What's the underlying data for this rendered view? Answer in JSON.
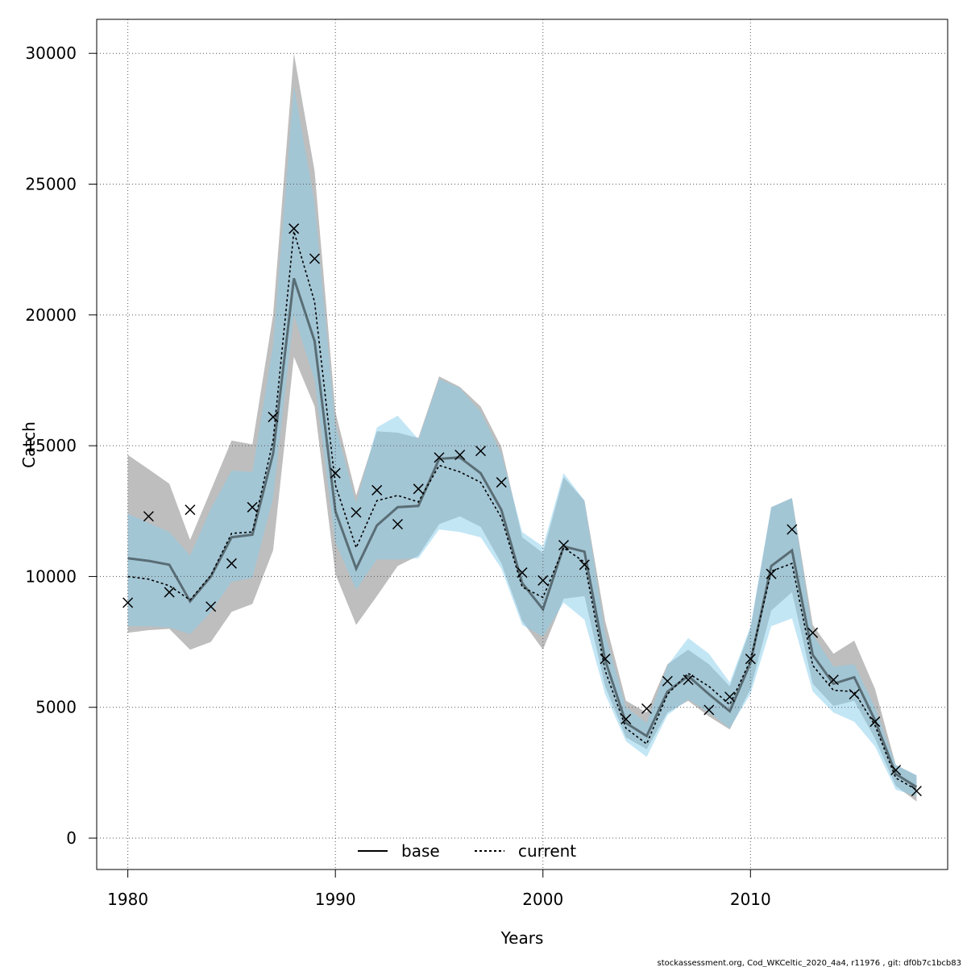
{
  "chart_data": {
    "type": "line",
    "xlabel": "Years",
    "ylabel": "Catch",
    "xlim": [
      1978.5,
      2019.5
    ],
    "ylim": [
      -1200,
      31300
    ],
    "x_ticks": [
      1980,
      1990,
      2000,
      2010
    ],
    "y_ticks": [
      0,
      5000,
      10000,
      15000,
      20000,
      25000,
      30000
    ],
    "grid": true,
    "legend_position": "bottom",
    "footer": "stockassessment.org, Cod_WKCeltic_2020_4a4, r11976 , git: df0b7c1bcb83",
    "x": [
      1980,
      1981,
      1982,
      1983,
      1984,
      1985,
      1986,
      1987,
      1988,
      1989,
      1990,
      1991,
      1992,
      1993,
      1994,
      1995,
      1996,
      1997,
      1998,
      1999,
      2000,
      2001,
      2002,
      2003,
      2004,
      2005,
      2006,
      2007,
      2008,
      2009,
      2010,
      2011,
      2012,
      2013,
      2014,
      2015,
      2016,
      2017,
      2018
    ],
    "series": [
      {
        "name": "base",
        "color": "#000000",
        "band_color": "#bebebe",
        "values": [
          10700,
          10600,
          10450,
          9050,
          10000,
          11500,
          11600,
          14700,
          21400,
          19000,
          12500,
          10300,
          11950,
          12650,
          12700,
          14500,
          14550,
          13950,
          12550,
          9750,
          8750,
          11150,
          10950,
          6800,
          4400,
          3900,
          5600,
          6200,
          5500,
          4850,
          6700,
          10400,
          11000,
          7000,
          5900,
          6150,
          4500,
          2450,
          1950
        ],
        "lower": [
          7850,
          7950,
          8000,
          7200,
          7500,
          8650,
          8950,
          11000,
          18400,
          16500,
          10100,
          8150,
          9250,
          10400,
          10800,
          12000,
          12300,
          11900,
          10500,
          8300,
          7200,
          9150,
          9250,
          5800,
          3850,
          3400,
          4800,
          5250,
          4650,
          4150,
          5700,
          8700,
          9400,
          5900,
          5050,
          5250,
          3800,
          2000,
          1400
        ],
        "upper": [
          14650,
          14100,
          13550,
          11400,
          13300,
          15200,
          15050,
          20000,
          30000,
          25500,
          16300,
          13100,
          15550,
          15500,
          15300,
          17650,
          17250,
          16500,
          14950,
          11500,
          10900,
          13800,
          12900,
          8300,
          5250,
          4800,
          6650,
          7200,
          6650,
          5800,
          8000,
          12650,
          13000,
          8150,
          7050,
          7550,
          5700,
          2800,
          2400
        ]
      },
      {
        "name": "current",
        "color": "#000000",
        "band_color": "#87ceeb",
        "values": [
          10000,
          9900,
          9650,
          9100,
          10050,
          11650,
          11700,
          15200,
          23200,
          20500,
          13500,
          11100,
          12900,
          13100,
          12850,
          14250,
          14000,
          13600,
          12250,
          9600,
          9200,
          11100,
          10550,
          6400,
          4200,
          3600,
          5500,
          6300,
          5800,
          5100,
          6800,
          10200,
          10500,
          6600,
          5650,
          5600,
          4300,
          2300,
          1850
        ],
        "lower": [
          8100,
          8100,
          8050,
          7800,
          8650,
          9800,
          9950,
          13000,
          20000,
          17500,
          11300,
          9500,
          10650,
          10650,
          10700,
          11800,
          11700,
          11500,
          10300,
          8150,
          7700,
          9000,
          8350,
          5500,
          3700,
          3100,
          4700,
          5300,
          4800,
          4200,
          5500,
          8100,
          8400,
          5600,
          4800,
          4450,
          3500,
          1850,
          1600
        ],
        "upper": [
          12400,
          12050,
          11700,
          10800,
          12600,
          14050,
          14000,
          18850,
          28750,
          24300,
          15800,
          12800,
          15700,
          16150,
          15250,
          17550,
          17200,
          16300,
          14700,
          11700,
          11150,
          13950,
          12900,
          7800,
          5000,
          4400,
          6600,
          7650,
          7050,
          5950,
          8100,
          12650,
          13000,
          7800,
          6550,
          6650,
          5000,
          2800,
          2400
        ]
      }
    ],
    "observed": {
      "marker": "x",
      "color": "#000000",
      "values": [
        9000,
        12300,
        9400,
        12550,
        8850,
        10500,
        12650,
        16100,
        23300,
        22150,
        13950,
        12450,
        13300,
        12000,
        13350,
        14550,
        14650,
        14800,
        13600,
        10150,
        9850,
        11200,
        10450,
        6850,
        4550,
        4950,
        6000,
        6050,
        4900,
        5400,
        6850,
        10100,
        11800,
        7850,
        6050,
        5500,
        4450,
        2600,
        1800
      ]
    }
  }
}
